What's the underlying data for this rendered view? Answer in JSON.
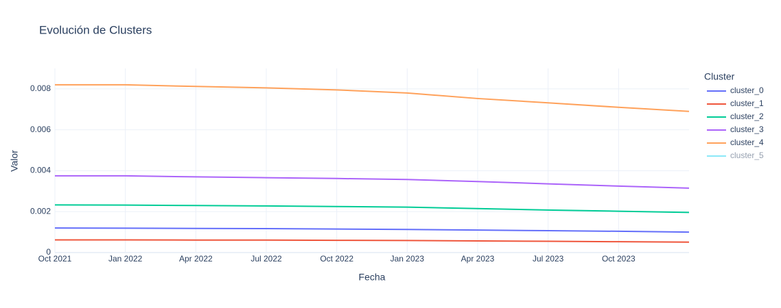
{
  "chart_data": {
    "type": "line",
    "title": "Evolución de Clusters",
    "x_label": "Fecha",
    "y_label": "Valor",
    "legend_title": "Cluster",
    "legend": "right",
    "grid": true,
    "x": [
      "2021-10",
      "2022-01",
      "2022-04",
      "2022-07",
      "2022-10",
      "2023-01",
      "2023-04",
      "2023-07",
      "2023-10",
      "2024-01"
    ],
    "xlim": [
      "2021-10",
      "2024-01"
    ],
    "xticks": [
      {
        "value": "2021-10",
        "label": "Oct 2021"
      },
      {
        "value": "2022-01",
        "label": "Jan 2022"
      },
      {
        "value": "2022-04",
        "label": "Apr 2022"
      },
      {
        "value": "2022-07",
        "label": "Jul 2022"
      },
      {
        "value": "2022-10",
        "label": "Oct 2022"
      },
      {
        "value": "2023-01",
        "label": "Jan 2023"
      },
      {
        "value": "2023-04",
        "label": "Apr 2023"
      },
      {
        "value": "2023-07",
        "label": "Jul 2023"
      },
      {
        "value": "2023-10",
        "label": "Oct 2023"
      }
    ],
    "ylim": [
      0,
      0.009
    ],
    "yticks": [
      0,
      0.002,
      0.004,
      0.006,
      0.008
    ],
    "series": [
      {
        "name": "cluster_0",
        "color": "#636efa",
        "values": [
          0.0012,
          0.00119,
          0.00118,
          0.00117,
          0.00115,
          0.00113,
          0.0011,
          0.00107,
          0.00104,
          0.001
        ]
      },
      {
        "name": "cluster_1",
        "color": "#ef553b",
        "values": [
          0.00062,
          0.00062,
          0.00061,
          0.00061,
          0.0006,
          0.00059,
          0.00057,
          0.00055,
          0.00053,
          0.00051
        ]
      },
      {
        "name": "cluster_2",
        "color": "#00cc96",
        "values": [
          0.00233,
          0.00232,
          0.0023,
          0.00228,
          0.00225,
          0.00222,
          0.00215,
          0.00208,
          0.00202,
          0.00196
        ]
      },
      {
        "name": "cluster_3",
        "color": "#ab63fa",
        "values": [
          0.00375,
          0.00375,
          0.0037,
          0.00366,
          0.00362,
          0.00357,
          0.00347,
          0.00336,
          0.00325,
          0.00315
        ]
      },
      {
        "name": "cluster_4",
        "color": "#ffa15a",
        "values": [
          0.0082,
          0.0082,
          0.00812,
          0.00805,
          0.00795,
          0.0078,
          0.00753,
          0.00732,
          0.0071,
          0.0069
        ]
      },
      {
        "name": "cluster_5",
        "color": "#19d3f3",
        "visible": "legendonly",
        "values": [
          null,
          null,
          null,
          null,
          null,
          null,
          null,
          null,
          null,
          null
        ]
      }
    ]
  }
}
